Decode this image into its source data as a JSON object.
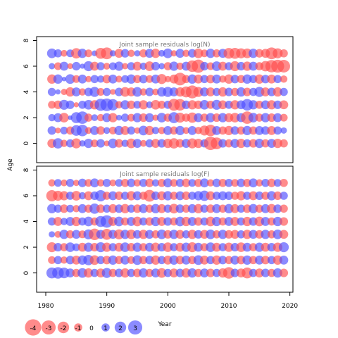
{
  "chart_data": {
    "type": "scatter",
    "xlabel": "Year",
    "ylabel": "Age",
    "x_ticks": [
      1980,
      1990,
      2000,
      2010,
      2020
    ],
    "y_ticks": [
      0,
      2,
      4,
      6,
      8
    ],
    "xlim": [
      1978.5,
      2020.5
    ],
    "ylim": [
      -1.5,
      8.3
    ],
    "years": [
      1981,
      1982,
      1983,
      1984,
      1985,
      1986,
      1987,
      1988,
      1989,
      1990,
      1991,
      1992,
      1993,
      1994,
      1995,
      1996,
      1997,
      1998,
      1999,
      2000,
      2001,
      2002,
      2003,
      2004,
      2005,
      2006,
      2007,
      2008,
      2009,
      2010,
      2011,
      2012,
      2013,
      2014,
      2015,
      2016,
      2017,
      2018,
      2019
    ],
    "ages": [
      0,
      1,
      2,
      3,
      4,
      5,
      6,
      7
    ],
    "colors": {
      "negative": "#ff4d4d",
      "positive": "#4d4dff"
    },
    "panels": [
      {
        "title": "Joint sample residuals log(N)",
        "residuals": [
          [
            -1.2,
            1.1,
            0.8,
            -0.9,
            1.0,
            -1.3,
            0.6,
            1.4
          ],
          [
            1.6,
            -0.5,
            1.2,
            -1.1,
            0.4,
            1.3,
            -0.9,
            1.0
          ],
          [
            -0.8,
            0.9,
            -1.4,
            1.5,
            -0.6,
            0.3,
            1.2,
            -0.7
          ],
          [
            1.0,
            -1.0,
            0.3,
            1.1,
            -1.3,
            1.4,
            -0.5,
            0.9
          ],
          [
            -1.5,
            1.7,
            1.8,
            -0.4,
            1.2,
            -0.9,
            1.1,
            -1.6
          ],
          [
            0.6,
            2.0,
            2.3,
            1.0,
            -0.8,
            1.2,
            0.4,
            1.3
          ],
          [
            1.3,
            -0.7,
            -1.0,
            1.4,
            1.1,
            -0.6,
            1.5,
            -0.9
          ],
          [
            -0.9,
            1.2,
            0.7,
            -1.3,
            1.5,
            1.0,
            -1.2,
            0.5
          ],
          [
            1.1,
            -1.1,
            -0.8,
            2.2,
            -0.9,
            0.8,
            1.0,
            -1.8
          ],
          [
            -0.5,
            0.7,
            1.2,
            2.4,
            1.0,
            -1.1,
            -0.7,
            -2.1
          ],
          [
            1.4,
            -0.9,
            -1.3,
            1.9,
            -0.5,
            1.2,
            0.9,
            0.6
          ],
          [
            -1.1,
            1.3,
            0.5,
            -0.8,
            1.1,
            -0.7,
            1.3,
            -1.2
          ],
          [
            0.8,
            -1.2,
            1.0,
            1.3,
            -1.4,
            0.9,
            -0.6,
            1.1
          ],
          [
            -1.4,
            1.0,
            -0.9,
            -1.1,
            -1.2,
            1.3,
            1.0,
            -0.8
          ],
          [
            1.2,
            -0.6,
            1.3,
            0.9,
            1.4,
            -1.0,
            -1.2,
            0.6
          ],
          [
            -0.7,
            1.4,
            -1.1,
            -1.3,
            -0.8,
            1.1,
            0.8,
            -1.0
          ],
          [
            1.0,
            -1.3,
            1.2,
            0.7,
            1.1,
            -0.9,
            -1.4,
            1.2
          ],
          [
            -1.2,
            0.8,
            -0.6,
            -1.4,
            -0.7,
            1.2,
            1.1,
            -1.3
          ],
          [
            1.1,
            -0.8,
            1.4,
            -1.0,
            1.3,
            -1.5,
            0.6,
            0.7
          ],
          [
            -1.3,
            1.2,
            -1.0,
            1.0,
            1.5,
            -0.6,
            -1.0,
            1.4
          ],
          [
            -1.6,
            -1.0,
            1.8,
            -2.1,
            1.2,
            -1.2,
            1.3,
            -0.6
          ],
          [
            -1.1,
            1.3,
            -1.5,
            -2.0,
            -1.3,
            -2.4,
            -0.8,
            1.2
          ],
          [
            1.2,
            -0.7,
            -1.0,
            1.1,
            -1.8,
            -1.0,
            1.2,
            -0.8
          ],
          [
            -1.5,
            1.2,
            -1.6,
            -1.3,
            -2.5,
            1.3,
            -2.0,
            1.1
          ],
          [
            -1.3,
            -0.8,
            1.2,
            -1.1,
            -1.5,
            -1.2,
            -2.6,
            -1.4
          ],
          [
            1.0,
            -1.5,
            -1.0,
            1.4,
            1.2,
            1.0,
            1.1,
            -0.9
          ],
          [
            -2.7,
            -2.0,
            1.3,
            -1.0,
            -1.2,
            -1.1,
            -0.9,
            1.3
          ],
          [
            -2.1,
            1.2,
            -1.1,
            1.5,
            1.0,
            1.2,
            1.4,
            -1.0
          ],
          [
            1.1,
            -1.0,
            1.3,
            -1.2,
            -1.3,
            -0.8,
            -1.2,
            1.2
          ],
          [
            -1.0,
            -1.3,
            -1.2,
            1.0,
            1.1,
            -1.3,
            1.0,
            -1.7
          ],
          [
            1.2,
            1.1,
            -1.4,
            -1.3,
            -1.0,
            1.1,
            -1.5,
            -1.8
          ],
          [
            -1.3,
            -1.0,
            1.2,
            1.2,
            1.3,
            -1.0,
            1.1,
            -1.5
          ],
          [
            1.0,
            1.3,
            -2.3,
            2.0,
            -1.1,
            1.3,
            -1.3,
            -1.4
          ],
          [
            -1.1,
            -1.0,
            1.4,
            1.3,
            1.0,
            1.0,
            1.2,
            1.3
          ],
          [
            1.3,
            1.2,
            -1.0,
            -1.0,
            1.5,
            -1.3,
            -1.0,
            -1.1
          ],
          [
            -1.0,
            1.1,
            1.3,
            1.2,
            -1.2,
            1.1,
            -1.6,
            -1.2
          ],
          [
            1.2,
            -1.2,
            -1.1,
            -1.3,
            1.1,
            -1.2,
            -2.3,
            -2.1
          ],
          [
            -1.3,
            1.0,
            1.2,
            1.1,
            -1.3,
            1.0,
            -2.5,
            -1.5
          ],
          [
            -1.0,
            0.6,
            -0.9,
            -1.2,
            1.0,
            -0.8,
            -2.4,
            -1.0
          ]
        ]
      },
      {
        "title": "Joint sample residuals log(F)",
        "residuals": [
          [
            1.8,
            -0.9,
            -1.5,
            0.6,
            1.0,
            1.3,
            -1.9,
            -0.8
          ],
          [
            2.0,
            1.0,
            1.1,
            -0.7,
            -1.2,
            1.0,
            -1.5,
            0.9
          ],
          [
            1.7,
            -0.8,
            -1.0,
            1.3,
            0.8,
            -1.1,
            -1.3,
            -0.7
          ],
          [
            1.2,
            1.1,
            1.4,
            -1.0,
            1.2,
            0.9,
            1.0,
            1.0
          ],
          [
            -1.0,
            -1.2,
            0.9,
            1.2,
            -1.3,
            -0.8,
            -1.4,
            -0.6
          ],
          [
            1.4,
            1.3,
            -1.2,
            -0.9,
            1.0,
            1.2,
            0.8,
            1.1
          ],
          [
            -1.3,
            1.6,
            1.3,
            1.5,
            1.4,
            -1.0,
            -1.2,
            -0.9
          ],
          [
            1.0,
            -1.4,
            -1.1,
            -2.0,
            -1.0,
            1.6,
            1.1,
            1.2
          ],
          [
            -1.2,
            1.0,
            1.5,
            1.2,
            1.8,
            -1.1,
            1.9,
            -0.8
          ],
          [
            1.5,
            -1.1,
            -1.3,
            -1.8,
            2.3,
            1.0,
            -1.0,
            1.0
          ],
          [
            -1.0,
            1.3,
            1.0,
            1.2,
            -1.2,
            -1.2,
            1.2,
            -0.7
          ],
          [
            1.1,
            -1.0,
            -1.2,
            -1.5,
            1.4,
            1.1,
            -1.1,
            0.9
          ],
          [
            -1.3,
            1.2,
            1.4,
            1.3,
            -1.0,
            -1.3,
            1.0,
            -1.0
          ],
          [
            1.0,
            -0.9,
            -1.1,
            -1.4,
            1.2,
            1.0,
            -1.3,
            1.1
          ],
          [
            -1.1,
            1.4,
            1.3,
            1.1,
            -1.4,
            -1.1,
            1.2,
            -0.8
          ],
          [
            1.3,
            -1.0,
            -1.0,
            -1.3,
            1.0,
            1.2,
            -1.0,
            1.0
          ],
          [
            -1.0,
            1.1,
            1.2,
            1.2,
            -1.1,
            -1.0,
            -2.1,
            -1.1
          ],
          [
            1.2,
            -1.3,
            -1.3,
            -1.0,
            1.3,
            1.3,
            1.1,
            0.8
          ],
          [
            -1.4,
            1.0,
            1.1,
            1.4,
            -1.2,
            -1.2,
            -1.2,
            -1.0
          ],
          [
            1.0,
            -1.2,
            -1.4,
            -1.1,
            1.1,
            1.0,
            1.3,
            1.2
          ],
          [
            -1.2,
            1.3,
            1.0,
            1.3,
            -1.0,
            -1.4,
            -1.0,
            -0.9
          ],
          [
            1.1,
            -1.1,
            -1.2,
            -1.2,
            1.4,
            1.1,
            1.2,
            1.0
          ],
          [
            -1.3,
            1.2,
            1.3,
            1.0,
            -1.3,
            -1.0,
            -1.1,
            -1.1
          ],
          [
            1.3,
            -1.0,
            -1.5,
            -1.3,
            1.2,
            1.2,
            1.0,
            0.9
          ],
          [
            -1.0,
            1.4,
            1.2,
            1.1,
            -1.1,
            -1.3,
            1.3,
            -1.0
          ],
          [
            1.2,
            -1.2,
            -1.0,
            -1.2,
            1.0,
            1.0,
            1.6,
            1.2
          ],
          [
            -1.1,
            1.0,
            1.4,
            1.4,
            -1.4,
            -1.1,
            -1.2,
            -0.8
          ],
          [
            1.0,
            -1.3,
            -1.2,
            -1.0,
            1.3,
            1.2,
            1.0,
            1.1
          ],
          [
            -1.3,
            1.1,
            1.0,
            1.3,
            -1.0,
            -1.0,
            1.2,
            -1.0
          ],
          [
            -2.0,
            -1.0,
            -1.3,
            -1.1,
            1.2,
            1.3,
            1.1,
            1.0
          ],
          [
            1.1,
            1.2,
            1.1,
            -1.2,
            -1.2,
            -1.2,
            -1.0,
            -0.9
          ],
          [
            -1.2,
            -1.1,
            -1.4,
            1.0,
            1.0,
            1.0,
            -1.3,
            1.1
          ],
          [
            -1.8,
            1.3,
            1.2,
            -1.3,
            -1.3,
            -1.1,
            1.0,
            -1.0
          ],
          [
            1.0,
            -1.0,
            -1.0,
            1.2,
            1.1,
            1.3,
            -1.2,
            1.2
          ],
          [
            -1.2,
            1.2,
            1.3,
            -1.1,
            -1.4,
            -1.0,
            1.1,
            -0.8
          ],
          [
            1.1,
            -1.1,
            -1.2,
            1.3,
            1.2,
            1.2,
            -1.0,
            1.0
          ],
          [
            -1.0,
            1.0,
            1.1,
            -1.0,
            -1.0,
            -1.3,
            1.3,
            -1.1
          ],
          [
            1.3,
            -1.3,
            -1.3,
            1.4,
            1.3,
            1.1,
            -1.1,
            0.9
          ],
          [
            -1.1,
            1.2,
            1.5,
            -1.2,
            -1.1,
            -1.0,
            1.0,
            -1.0
          ]
        ]
      }
    ],
    "legend": {
      "values": [
        -4,
        -3,
        -2,
        -1,
        0,
        1,
        2,
        3
      ],
      "labels": [
        "-4",
        "-3",
        "-2",
        "-1",
        "0",
        "1",
        "2",
        "3"
      ]
    }
  }
}
